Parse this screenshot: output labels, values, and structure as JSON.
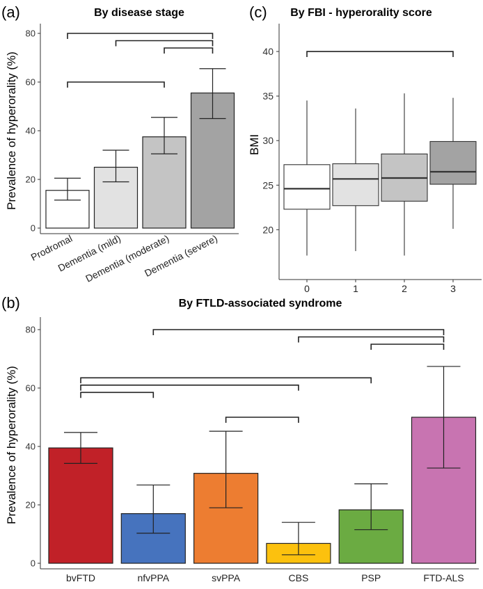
{
  "chart_data": [
    {
      "panel": "(a)",
      "type": "bar",
      "title": "By disease stage",
      "xlabel": "",
      "ylabel": "Prevalence of hyperorality (%)",
      "ylim": [
        0,
        80
      ],
      "yticks": [
        0,
        20,
        40,
        60,
        80
      ],
      "categories": [
        "Prodromal",
        "Dementia (mild)",
        "Dementia (moderate)",
        "Dementia (severe)"
      ],
      "values": [
        15.5,
        25,
        37.5,
        55.5
      ],
      "ci_low": [
        11.5,
        19,
        30.5,
        45
      ],
      "ci_high": [
        20.5,
        32,
        45.5,
        65.5
      ],
      "colors": [
        "#ffffff",
        "#e2e2e2",
        "#c4c4c4",
        "#a3a3a3"
      ],
      "brackets": [
        {
          "from": 0,
          "to": 3,
          "y": 80
        },
        {
          "from": 1,
          "to": 3,
          "y": 77
        },
        {
          "from": 2,
          "to": 3,
          "y": 74
        },
        {
          "from": 0,
          "to": 2,
          "y": 60
        }
      ]
    },
    {
      "panel": "(c)",
      "type": "box",
      "title": "By FBI - hyperorality score",
      "xlabel": "",
      "ylabel": "BMI",
      "ylim": [
        15.5,
        42.5
      ],
      "yticks": [
        20,
        25,
        30,
        35,
        40
      ],
      "categories": [
        "0",
        "1",
        "2",
        "3"
      ],
      "boxes": [
        {
          "min": 17.1,
          "q1": 22.3,
          "median": 24.6,
          "q3": 27.3,
          "max": 34.5
        },
        {
          "min": 17.6,
          "q1": 22.7,
          "median": 25.7,
          "q3": 27.4,
          "max": 33.6
        },
        {
          "min": 17.1,
          "q1": 23.2,
          "median": 25.8,
          "q3": 28.5,
          "max": 35.3
        },
        {
          "min": 20.1,
          "q1": 25.1,
          "median": 26.5,
          "q3": 29.9,
          "max": 34.8
        }
      ],
      "colors": [
        "#ffffff",
        "#e2e2e2",
        "#c4c4c4",
        "#a3a3a3"
      ],
      "brackets": [
        {
          "from": 0,
          "to": 3,
          "y": 40
        }
      ]
    },
    {
      "panel": "(b)",
      "type": "bar",
      "title": "By FTLD-associated syndrome",
      "xlabel": "",
      "ylabel": "Prevalence of hyperorality (%)",
      "ylim": [
        0,
        80
      ],
      "yticks": [
        0,
        20,
        40,
        60,
        80
      ],
      "categories": [
        "bvFTD",
        "nfvPPA",
        "svPPA",
        "CBS",
        "PSP",
        "FTD-ALS"
      ],
      "values": [
        39.5,
        17,
        30.8,
        6.8,
        18.3,
        50
      ],
      "ci_low": [
        34.2,
        10.3,
        19,
        2.9,
        11.5,
        32.6
      ],
      "ci_high": [
        44.8,
        26.8,
        45.2,
        14,
        27.2,
        67.4
      ],
      "colors": [
        "#c12128",
        "#4673be",
        "#ed7d31",
        "#fcc10e",
        "#6bab42",
        "#c874b1"
      ],
      "brackets": [
        {
          "from": 1,
          "to": 5,
          "y": 80
        },
        {
          "from": 3,
          "to": 5,
          "y": 77.5
        },
        {
          "from": 4,
          "to": 5,
          "y": 75
        },
        {
          "from": 0,
          "to": 4,
          "y": 63.5
        },
        {
          "from": 0,
          "to": 3,
          "y": 61
        },
        {
          "from": 0,
          "to": 1,
          "y": 58.5
        },
        {
          "from": 2,
          "to": 3,
          "y": 50
        }
      ]
    }
  ]
}
